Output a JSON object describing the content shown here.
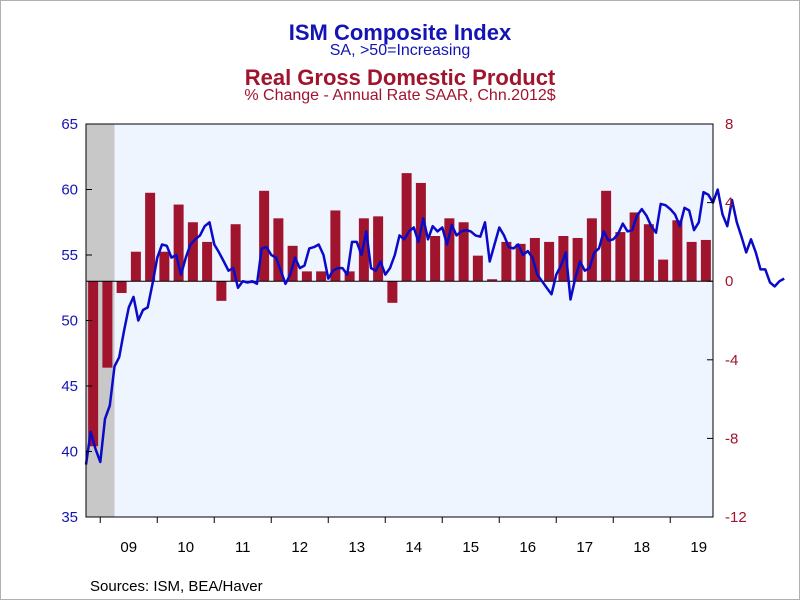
{
  "chart_data": {
    "type": "bar+line",
    "title_ism": "ISM Composite Index",
    "subtitle_ism": "SA, >50=Increasing",
    "title_gdp": "Real Gross Domestic Product",
    "subtitle_gdp": "% Change - Annual Rate    SAAR, Chn.2012$",
    "source": "Sources:  ISM, BEA/Haver",
    "left_axis": {
      "min": 35,
      "max": 65,
      "ticks": [
        35,
        40,
        45,
        50,
        55,
        60,
        65
      ],
      "color": "#1414b4"
    },
    "right_axis": {
      "min": -12,
      "max": 8,
      "ticks": [
        -12,
        -8,
        -4,
        0,
        4,
        8
      ],
      "color": "#a0142d"
    },
    "x_axis": {
      "start": 2008.75,
      "end": 2019.75,
      "labels": [
        "09",
        "10",
        "11",
        "12",
        "13",
        "14",
        "15",
        "16",
        "17",
        "18",
        "19"
      ]
    },
    "recession": {
      "start": 2008.75,
      "end": 2009.25
    },
    "gdp_series": {
      "name": "Real Gross Domestic Product",
      "color": "#a0142d",
      "quarters": [
        "2008Q4",
        "2009Q1",
        "2009Q2",
        "2009Q3",
        "2009Q4",
        "2010Q1",
        "2010Q2",
        "2010Q3",
        "2010Q4",
        "2011Q1",
        "2011Q2",
        "2011Q3",
        "2011Q4",
        "2012Q1",
        "2012Q2",
        "2012Q3",
        "2012Q4",
        "2013Q1",
        "2013Q2",
        "2013Q3",
        "2013Q4",
        "2014Q1",
        "2014Q2",
        "2014Q3",
        "2014Q4",
        "2015Q1",
        "2015Q2",
        "2015Q3",
        "2015Q4",
        "2016Q1",
        "2016Q2",
        "2016Q3",
        "2016Q4",
        "2017Q1",
        "2017Q2",
        "2017Q3",
        "2017Q4",
        "2018Q1",
        "2018Q2",
        "2018Q3",
        "2018Q4",
        "2019Q1",
        "2019Q2",
        "2019Q3"
      ],
      "values": [
        -8.4,
        -4.4,
        -0.6,
        1.5,
        4.5,
        1.5,
        3.9,
        3.0,
        2.0,
        -1.0,
        2.9,
        -0.1,
        4.6,
        3.2,
        1.8,
        0.5,
        0.5,
        3.6,
        0.5,
        3.2,
        3.3,
        -1.1,
        5.5,
        5.0,
        2.3,
        3.2,
        3.0,
        1.3,
        0.1,
        2.0,
        1.9,
        2.2,
        2.0,
        2.3,
        2.2,
        3.2,
        4.6,
        2.5,
        3.5,
        2.9,
        1.1,
        3.1,
        2.0,
        2.1
      ]
    },
    "ism_series": {
      "name": "ISM Composite Index",
      "color": "#0a0ac8",
      "start": "2008-10",
      "values": [
        39.0,
        41.5,
        40.2,
        39.2,
        42.5,
        43.5,
        46.5,
        47.2,
        49.2,
        51.0,
        51.8,
        50.0,
        50.8,
        51.0,
        52.8,
        54.8,
        55.8,
        55.7,
        54.8,
        55.0,
        53.5,
        54.8,
        55.8,
        56.2,
        56.5,
        57.2,
        57.5,
        55.8,
        55.2,
        54.5,
        53.8,
        54.0,
        52.5,
        53.0,
        52.9,
        53.0,
        52.8,
        55.5,
        55.6,
        55.0,
        54.8,
        53.8,
        52.8,
        53.5,
        54.8,
        54.0,
        54.2,
        55.5,
        55.6,
        55.8,
        55.0,
        53.2,
        53.8,
        54.0,
        54.0,
        53.5,
        56.0,
        56.0,
        55.0,
        56.8,
        54.0,
        53.8,
        54.5,
        53.5,
        54.0,
        55.0,
        56.5,
        56.2,
        56.8,
        57.1,
        56.0,
        57.8,
        56.2,
        57.2,
        56.8,
        57.1,
        55.8,
        57.3,
        56.5,
        56.8,
        56.9,
        56.8,
        56.5,
        56.4,
        57.5,
        54.5,
        55.8,
        57.1,
        56.5,
        55.6,
        55.5,
        55.8,
        55.0,
        55.3,
        54.8,
        53.5,
        53.0,
        52.5,
        52.0,
        53.5,
        54.2,
        55.2,
        51.6,
        53.2,
        54.5,
        53.8,
        54.0,
        55.2,
        55.5,
        56.8,
        56.1,
        56.2,
        56.6,
        57.4,
        56.8,
        56.9,
        58.0,
        58.5,
        58.0,
        57.2,
        56.7,
        58.9,
        58.8,
        58.5,
        58.1,
        57.2,
        58.6,
        58.4,
        56.9,
        57.5,
        59.8,
        59.6,
        59.0,
        60.0,
        58.1,
        57.2,
        59.2,
        57.5,
        56.4,
        55.2,
        56.2,
        55.2,
        53.9,
        53.9,
        52.9,
        52.6,
        53.0,
        53.2
      ]
    }
  }
}
